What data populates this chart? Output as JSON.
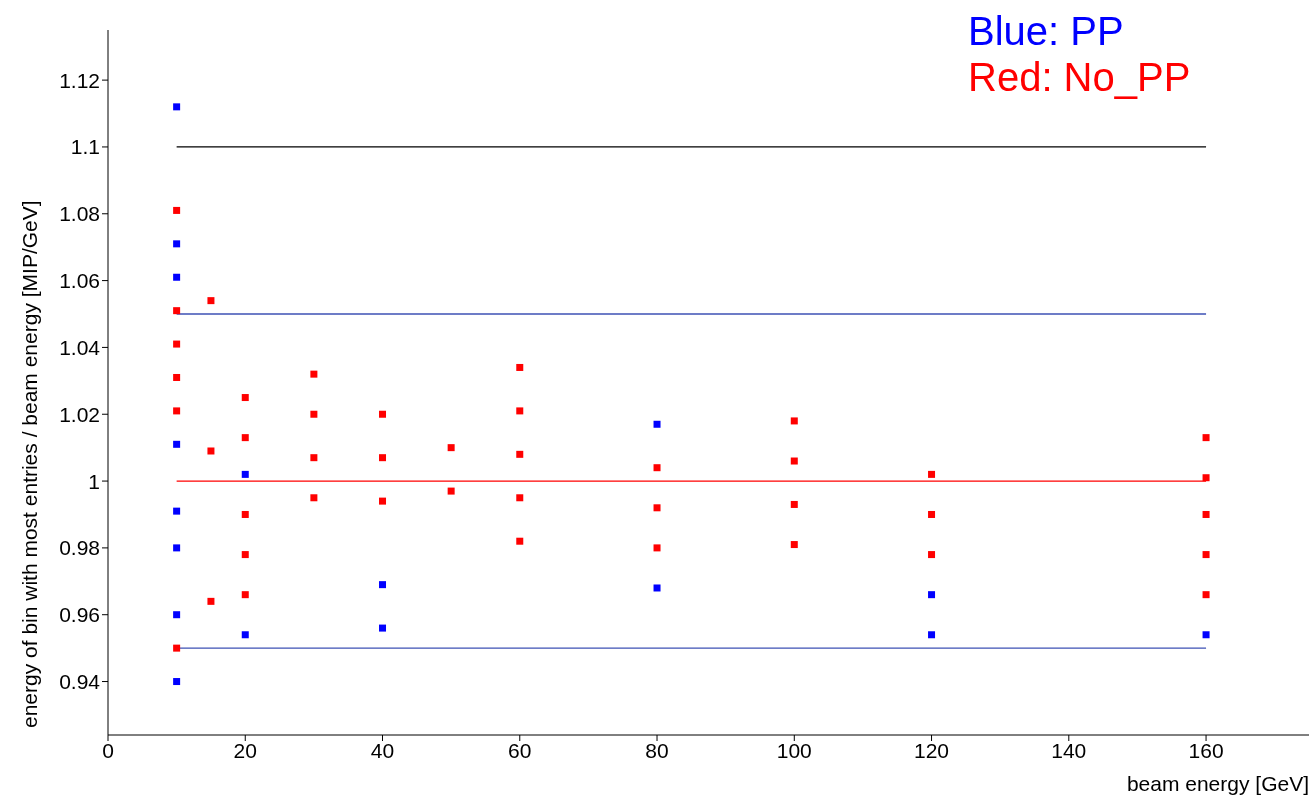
{
  "chart_data": {
    "type": "scatter",
    "xlabel": "beam energy [GeV]",
    "ylabel": "energy of bin with most entries / beam energy [MIP/GeV]",
    "xlim": [
      0,
      175
    ],
    "ylim": [
      0.924,
      1.135
    ],
    "xticks": [
      0,
      20,
      40,
      60,
      80,
      100,
      120,
      140,
      160
    ],
    "yticks": [
      0.94,
      0.96,
      0.98,
      1,
      1.02,
      1.04,
      1.06,
      1.08,
      1.1,
      1.12
    ],
    "grid": false,
    "legend": "top right",
    "marker": "square",
    "series": [
      {
        "name": "Blue: PP",
        "color": "#0000ff",
        "x": [
          10,
          10,
          10,
          10,
          10,
          10,
          10,
          10,
          20,
          20,
          40,
          40,
          80,
          80,
          120,
          120,
          160
        ],
        "values": [
          1.112,
          1.071,
          1.061,
          1.011,
          0.991,
          0.98,
          0.96,
          0.94,
          1.002,
          0.954,
          0.969,
          0.956,
          1.017,
          0.968,
          0.966,
          0.954,
          0.954
        ]
      },
      {
        "name": "Red: No_PP",
        "color": "#ff0000",
        "x": [
          10,
          10,
          10,
          10,
          10,
          10,
          15,
          15,
          15,
          20,
          20,
          20,
          20,
          20,
          30,
          30,
          30,
          30,
          40,
          40,
          40,
          50,
          50,
          60,
          60,
          60,
          60,
          60,
          80,
          80,
          80,
          100,
          100,
          100,
          100,
          120,
          120,
          120,
          160,
          160,
          160,
          160,
          160
        ],
        "values": [
          1.081,
          1.051,
          1.041,
          1.031,
          1.021,
          0.95,
          1.054,
          1.009,
          0.964,
          1.025,
          1.013,
          0.99,
          0.978,
          0.966,
          1.032,
          1.02,
          1.007,
          0.995,
          1.02,
          1.007,
          0.994,
          1.01,
          0.997,
          1.034,
          1.021,
          1.008,
          0.995,
          0.982,
          1.004,
          0.992,
          0.98,
          1.018,
          1.006,
          0.993,
          0.981,
          1.002,
          0.99,
          0.978,
          1.013,
          1.001,
          0.99,
          0.978,
          0.966
        ]
      },
      {
        "type": "line",
        "marker": "none",
        "color": "#000000",
        "x": [
          10,
          160
        ],
        "values": [
          1.1,
          1.1
        ]
      },
      {
        "type": "line",
        "marker": "none",
        "color": "#3c50b4",
        "x": [
          10,
          160
        ],
        "values": [
          1.05,
          1.05
        ]
      },
      {
        "type": "line",
        "marker": "none",
        "color": "#3c50b4",
        "x": [
          10,
          160
        ],
        "values": [
          0.95,
          0.95
        ]
      },
      {
        "type": "line",
        "marker": "none",
        "color": "#ff0000",
        "x": [
          10,
          160
        ],
        "values": [
          1,
          1
        ]
      }
    ]
  }
}
